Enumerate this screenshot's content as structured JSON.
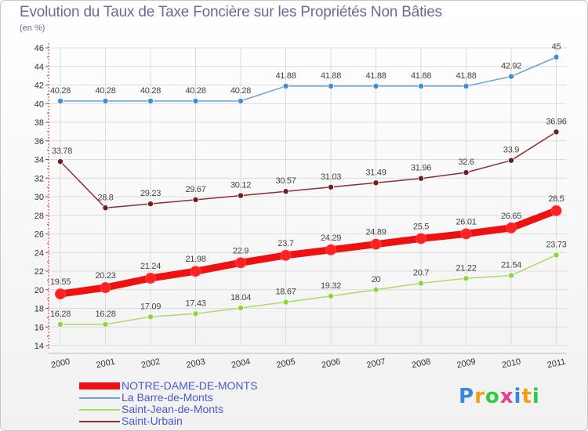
{
  "header": {
    "title": "Evolution du Taux de Taxe Foncière sur les Propriétés Non Bâties",
    "unit": "(en %)"
  },
  "logo": {
    "text": "Proxiti",
    "letters": [
      "P",
      "r",
      "o",
      "x",
      "i",
      "t",
      "i"
    ],
    "colors": [
      "#3a86d8",
      "#f39c12",
      "#2ecc40",
      "#e83e8c",
      "#3a86d8",
      "#f39c12",
      "#2ecc40"
    ]
  },
  "chart_data": {
    "type": "line",
    "title": "Evolution du Taux de Taxe Foncière sur les Propriétés Non Bâties",
    "ylabel": "(en %)",
    "xlabel": "",
    "x": [
      "2000",
      "2001",
      "2002",
      "2003",
      "2004",
      "2005",
      "2006",
      "2007",
      "2008",
      "2009",
      "2010",
      "2011"
    ],
    "ylim": [
      14,
      46
    ],
    "yticks": [
      14,
      16,
      18,
      20,
      22,
      24,
      26,
      28,
      30,
      32,
      34,
      36,
      38,
      40,
      42,
      44,
      46
    ],
    "grid": true,
    "legend_position": "bottom-left",
    "series": [
      {
        "name": "NOTRE-DAME-DE-MONTS",
        "color": "#ee1111",
        "marker_fill": "#ff2222",
        "emphasis": "thick",
        "values": [
          19.55,
          20.23,
          21.24,
          21.98,
          22.9,
          23.7,
          24.29,
          24.89,
          25.5,
          26.01,
          26.65,
          28.5
        ],
        "labels": [
          "19.55",
          "20.23",
          "21.24",
          "21.98",
          "22.9",
          "23.7",
          "24.29",
          "24.89",
          "25.5",
          "26.01",
          "26.65",
          "28.5"
        ]
      },
      {
        "name": "La Barre-de-Monts",
        "color": "#6aa0d4",
        "marker_fill": "#3f8fd6",
        "emphasis": "thin",
        "values": [
          40.28,
          40.28,
          40.28,
          40.28,
          40.28,
          41.88,
          41.88,
          41.88,
          41.88,
          41.88,
          42.92,
          45
        ],
        "labels": [
          "40.28",
          "40.28",
          "40.28",
          "40.28",
          "40.28",
          "41.88",
          "41.88",
          "41.88",
          "41.88",
          "41.88",
          "42.92",
          "45"
        ]
      },
      {
        "name": "Saint-Jean-de-Monts",
        "color": "#a8dc6a",
        "marker_fill": "#8ed43a",
        "emphasis": "thin",
        "values": [
          16.28,
          16.28,
          17.09,
          17.43,
          18.04,
          18.67,
          19.32,
          20,
          20.7,
          21.22,
          21.54,
          23.73
        ],
        "labels": [
          "16.28",
          "16.28",
          "17.09",
          "17.43",
          "18.04",
          "18.67",
          "19.32",
          "20",
          "20.7",
          "21.22",
          "21.54",
          "23.73"
        ]
      },
      {
        "name": "Saint-Urbain",
        "color": "#8a3030",
        "marker_fill": "#6e1e1e",
        "emphasis": "thin",
        "values": [
          33.78,
          28.8,
          29.23,
          29.67,
          30.12,
          30.57,
          31.03,
          31.49,
          31.96,
          32.6,
          33.9,
          36.96
        ],
        "labels": [
          "33.78",
          "28.8",
          "29.23",
          "29.67",
          "30.12",
          "30.57",
          "31.03",
          "31.49",
          "31.96",
          "32.6",
          "33.9",
          "36.96"
        ]
      }
    ]
  }
}
